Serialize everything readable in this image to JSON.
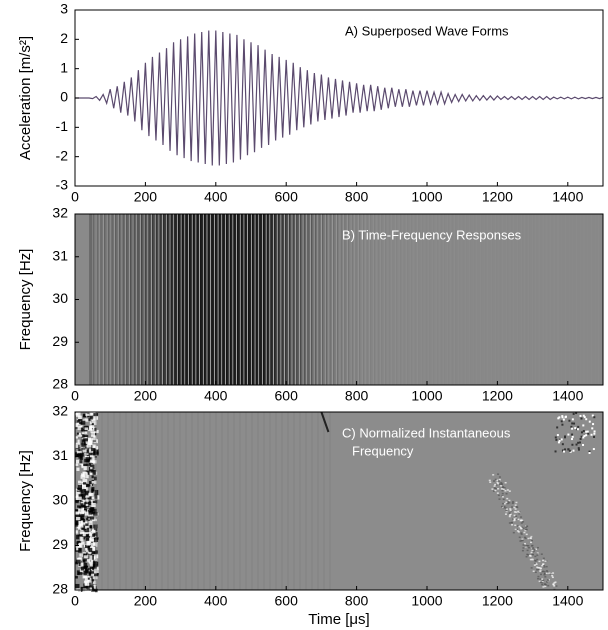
{
  "chart_data": [
    {
      "type": "line",
      "ylabel": "Acceleration [m/s²]",
      "annotation": [
        "A)  Superposed Wave Forms"
      ],
      "annotation_color": "#000000",
      "xlim": [
        0,
        1500
      ],
      "xticks": [
        0,
        200,
        400,
        600,
        800,
        1000,
        1200,
        1400
      ],
      "ylim": [
        -3,
        3
      ],
      "yticks": [
        -3,
        -2,
        -1,
        0,
        1,
        2,
        3
      ],
      "x": [
        0,
        10,
        20,
        30,
        40,
        50,
        60,
        70,
        80,
        90,
        100,
        110,
        120,
        130,
        140,
        150,
        160,
        170,
        180,
        190,
        200,
        210,
        220,
        230,
        240,
        250,
        260,
        270,
        280,
        290,
        300,
        310,
        320,
        330,
        340,
        350,
        360,
        370,
        380,
        390,
        400,
        410,
        420,
        430,
        440,
        450,
        460,
        470,
        480,
        490,
        500,
        510,
        520,
        530,
        540,
        550,
        560,
        570,
        580,
        590,
        600,
        610,
        620,
        630,
        640,
        650,
        660,
        670,
        680,
        690,
        700,
        710,
        720,
        730,
        740,
        750,
        760,
        770,
        780,
        790,
        800,
        810,
        820,
        830,
        840,
        850,
        860,
        870,
        880,
        890,
        900,
        910,
        920,
        930,
        940,
        950,
        960,
        970,
        980,
        990,
        1000,
        1010,
        1020,
        1030,
        1040,
        1050,
        1060,
        1070,
        1080,
        1090,
        1100,
        1110,
        1120,
        1130,
        1140,
        1150,
        1160,
        1170,
        1180,
        1190,
        1200,
        1210,
        1220,
        1230,
        1240,
        1250,
        1260,
        1270,
        1280,
        1290,
        1300,
        1310,
        1320,
        1330,
        1340,
        1350,
        1360,
        1370,
        1380,
        1390,
        1400,
        1410,
        1420,
        1430,
        1440,
        1450,
        1460,
        1470,
        1480,
        1490,
        1500
      ],
      "series": [
        {
          "color": "#5b4a6e",
          "values": [
            0,
            0,
            0,
            0,
            0,
            -0.02,
            0.05,
            -0.08,
            0.12,
            -0.18,
            0.3,
            -0.35,
            0.4,
            -0.5,
            0.55,
            -0.6,
            0.7,
            -0.8,
            0.95,
            -1.1,
            1.2,
            -1.3,
            1.4,
            -1.45,
            1.55,
            -1.6,
            1.7,
            -1.8,
            1.9,
            -1.95,
            2.0,
            -2.05,
            2.1,
            -2.15,
            2.2,
            -2.2,
            2.25,
            -2.25,
            2.3,
            -2.3,
            2.3,
            -2.3,
            2.25,
            -2.25,
            2.2,
            -2.2,
            2.15,
            -2.1,
            2.0,
            -1.95,
            1.9,
            -1.85,
            1.8,
            -1.7,
            1.65,
            -1.6,
            1.5,
            -1.45,
            1.4,
            -1.35,
            1.3,
            -1.25,
            1.2,
            -1.1,
            1.05,
            -1.0,
            0.95,
            -0.9,
            0.85,
            -0.8,
            0.8,
            -0.75,
            0.7,
            -0.7,
            0.65,
            -0.65,
            0.6,
            -0.6,
            0.55,
            -0.5,
            0.5,
            -0.5,
            0.45,
            -0.45,
            0.45,
            -0.45,
            0.4,
            -0.4,
            0.35,
            -0.35,
            0.35,
            -0.3,
            0.3,
            -0.3,
            0.3,
            -0.3,
            0.25,
            -0.25,
            0.25,
            -0.25,
            0.25,
            -0.2,
            0.2,
            -0.2,
            0.2,
            -0.2,
            0.15,
            -0.15,
            0.12,
            -0.12,
            0.12,
            -0.1,
            0.1,
            -0.1,
            0.08,
            -0.08,
            0.08,
            -0.07,
            0.07,
            -0.07,
            0.07,
            -0.05,
            0.05,
            -0.05,
            0.05,
            -0.05,
            0.05,
            -0.05,
            0.05,
            -0.05,
            0.05,
            -0.05,
            0.05,
            -0.05,
            0.05,
            -0.05,
            0.03,
            -0.03,
            0.03,
            -0.03,
            0.03,
            -0.03,
            0.03,
            -0.03,
            0.02,
            -0.02,
            0.02,
            -0.02,
            0.02,
            -0.02,
            0.02
          ]
        }
      ]
    },
    {
      "type": "image",
      "ylabel": "Frequency [Hz]",
      "annotation": [
        "B)  Time-Frequency Responses"
      ],
      "annotation_color": "#ffffff",
      "xlim": [
        0,
        1500
      ],
      "xticks": [
        0,
        200,
        400,
        600,
        800,
        1000,
        1200,
        1400
      ],
      "ylim": [
        28,
        32
      ],
      "yticks": [
        28,
        29,
        30,
        31,
        32
      ]
    },
    {
      "type": "image",
      "ylabel": "Frequency [Hz]",
      "xlabel": "Time [μs]",
      "annotation": [
        "C)  Normalized Instantaneous",
        "Frequency"
      ],
      "annotation_color": "#ffffff",
      "xlim": [
        0,
        1500
      ],
      "xticks": [
        0,
        200,
        400,
        600,
        800,
        1000,
        1200,
        1400
      ],
      "ylim": [
        28,
        32
      ],
      "yticks": [
        28,
        29,
        30,
        31,
        32
      ]
    }
  ]
}
